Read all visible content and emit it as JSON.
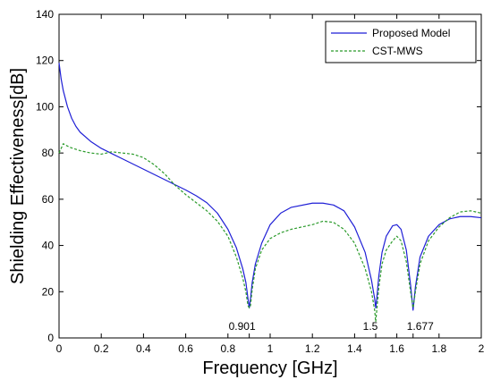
{
  "chart_data": {
    "type": "line",
    "title": "",
    "xlabel": "Frequency [GHz]",
    "ylabel": "Shielding Effectiveness[dB]",
    "xlim": [
      0,
      2
    ],
    "ylim": [
      0,
      140
    ],
    "xticks": [
      "0",
      "0.2",
      "0.4",
      "0.6",
      "0.8",
      "1",
      "1.2",
      "1.4",
      "1.6",
      "1.8",
      "2"
    ],
    "yticks": [
      "0",
      "20",
      "40",
      "60",
      "80",
      "100",
      "120",
      "140"
    ],
    "legend_position": "top-right",
    "grid": false,
    "series": [
      {
        "name": "Proposed Model",
        "color": "#1f1fd6",
        "style": "solid",
        "points": [
          [
            0.0,
            119
          ],
          [
            0.01,
            112
          ],
          [
            0.02,
            107
          ],
          [
            0.04,
            100
          ],
          [
            0.06,
            95
          ],
          [
            0.08,
            91.5
          ],
          [
            0.1,
            89
          ],
          [
            0.15,
            85
          ],
          [
            0.2,
            82
          ],
          [
            0.3,
            77.5
          ],
          [
            0.4,
            73
          ],
          [
            0.5,
            68.5
          ],
          [
            0.6,
            64
          ],
          [
            0.65,
            61.5
          ],
          [
            0.7,
            58.5
          ],
          [
            0.75,
            54
          ],
          [
            0.8,
            47
          ],
          [
            0.84,
            39
          ],
          [
            0.87,
            30
          ],
          [
            0.885,
            24
          ],
          [
            0.895,
            17
          ],
          [
            0.901,
            13
          ],
          [
            0.907,
            17
          ],
          [
            0.915,
            24
          ],
          [
            0.93,
            32
          ],
          [
            0.96,
            41
          ],
          [
            1.0,
            49
          ],
          [
            1.05,
            54
          ],
          [
            1.1,
            56.5
          ],
          [
            1.2,
            58.3
          ],
          [
            1.25,
            58.3
          ],
          [
            1.3,
            57.5
          ],
          [
            1.35,
            55
          ],
          [
            1.4,
            48
          ],
          [
            1.45,
            37
          ],
          [
            1.48,
            25
          ],
          [
            1.495,
            17
          ],
          [
            1.5,
            13
          ],
          [
            1.505,
            17
          ],
          [
            1.515,
            27
          ],
          [
            1.53,
            37
          ],
          [
            1.55,
            44
          ],
          [
            1.58,
            48.5
          ],
          [
            1.6,
            49
          ],
          [
            1.62,
            47
          ],
          [
            1.645,
            38
          ],
          [
            1.665,
            23
          ],
          [
            1.677,
            12
          ],
          [
            1.688,
            22
          ],
          [
            1.71,
            35
          ],
          [
            1.75,
            44
          ],
          [
            1.8,
            49
          ],
          [
            1.85,
            51.5
          ],
          [
            1.9,
            52.5
          ],
          [
            1.95,
            52.5
          ],
          [
            2.0,
            52
          ]
        ]
      },
      {
        "name": "CST-MWS",
        "color": "#2a9a2a",
        "style": "dashed",
        "points": [
          [
            0.0,
            80
          ],
          [
            0.02,
            84
          ],
          [
            0.05,
            82.5
          ],
          [
            0.1,
            81
          ],
          [
            0.15,
            80
          ],
          [
            0.2,
            79.5
          ],
          [
            0.25,
            80.5
          ],
          [
            0.3,
            80
          ],
          [
            0.35,
            79.5
          ],
          [
            0.4,
            78
          ],
          [
            0.45,
            75
          ],
          [
            0.5,
            71
          ],
          [
            0.55,
            66
          ],
          [
            0.6,
            62
          ],
          [
            0.65,
            58.5
          ],
          [
            0.7,
            55
          ],
          [
            0.75,
            50.5
          ],
          [
            0.8,
            44
          ],
          [
            0.84,
            35
          ],
          [
            0.87,
            26
          ],
          [
            0.885,
            20
          ],
          [
            0.895,
            14
          ],
          [
            0.901,
            13
          ],
          [
            0.907,
            14
          ],
          [
            0.915,
            21
          ],
          [
            0.93,
            30
          ],
          [
            0.96,
            38
          ],
          [
            1.0,
            43
          ],
          [
            1.05,
            45.5
          ],
          [
            1.1,
            47
          ],
          [
            1.2,
            49
          ],
          [
            1.25,
            50.5
          ],
          [
            1.3,
            50
          ],
          [
            1.35,
            47
          ],
          [
            1.4,
            41
          ],
          [
            1.45,
            30
          ],
          [
            1.48,
            20
          ],
          [
            1.495,
            12
          ],
          [
            1.5,
            7
          ],
          [
            1.505,
            12
          ],
          [
            1.515,
            22
          ],
          [
            1.53,
            32
          ],
          [
            1.55,
            38
          ],
          [
            1.58,
            42
          ],
          [
            1.6,
            44
          ],
          [
            1.62,
            42
          ],
          [
            1.645,
            33
          ],
          [
            1.665,
            20
          ],
          [
            1.677,
            13
          ],
          [
            1.688,
            20
          ],
          [
            1.71,
            32
          ],
          [
            1.75,
            42
          ],
          [
            1.8,
            48
          ],
          [
            1.85,
            52
          ],
          [
            1.9,
            54.5
          ],
          [
            1.95,
            55
          ],
          [
            2.0,
            54
          ]
        ]
      }
    ],
    "annotations": [
      {
        "text": "0.901",
        "x": 0.901,
        "y": 0
      },
      {
        "text": "1.5",
        "x": 1.5,
        "y": 0
      },
      {
        "text": "1.677",
        "x": 1.677,
        "y": 0
      }
    ]
  }
}
